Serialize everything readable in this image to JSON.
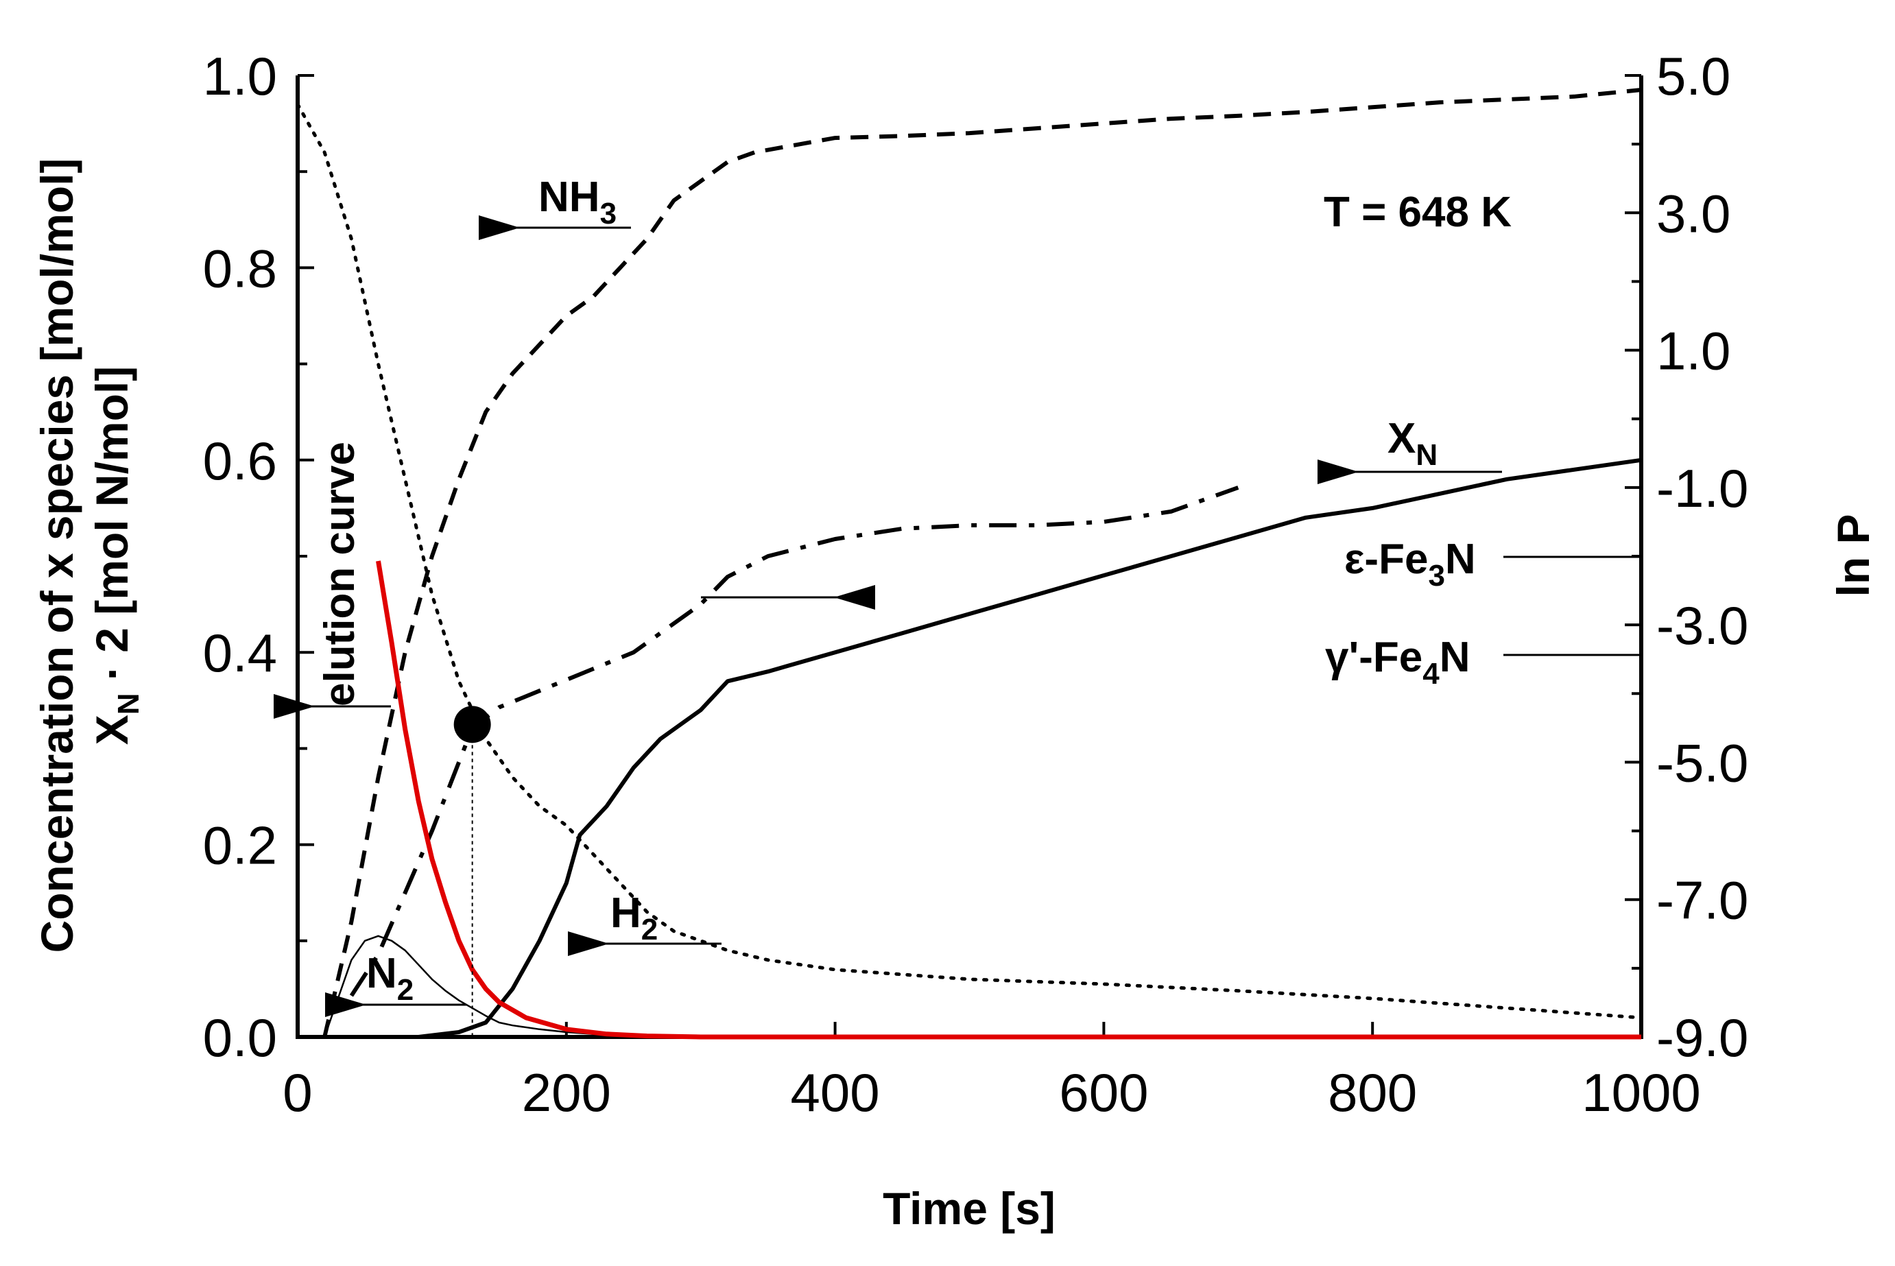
{
  "chart_data": {
    "type": "line",
    "title": "",
    "xlabel": "Time [s]",
    "ylabel_left_line1": "Concentration of x species [mol/mol]",
    "ylabel_left_line2_main": "X",
    "ylabel_left_line2_sub": "N",
    "ylabel_left_line2_rest": " · 2 [mol N/mol]",
    "ylabel_right": "ln P",
    "xlim": [
      0,
      1000
    ],
    "ylim_left": [
      0,
      1.0
    ],
    "ylim_right": [
      -9.0,
      5.0
    ],
    "x_ticks": [
      "0",
      "200",
      "400",
      "600",
      "800",
      "1000"
    ],
    "x_tick_values": [
      0,
      200,
      400,
      600,
      800,
      1000
    ],
    "y_left_ticks": [
      "0.0",
      "0.2",
      "0.4",
      "0.6",
      "0.8",
      "1.0"
    ],
    "y_left_tick_values": [
      0,
      0.2,
      0.4,
      0.6,
      0.8,
      1.0
    ],
    "y_right_ticks": [
      "-9.0",
      "-7.0",
      "-5.0",
      "-3.0",
      "-1.0",
      "1.0",
      "3.0",
      "5.0"
    ],
    "y_right_tick_values": [
      -9,
      -7,
      -5,
      -3,
      -1,
      1,
      3,
      5
    ],
    "temperature_label": "T = 648 K",
    "series": [
      {
        "name": "NH3",
        "axis": "left",
        "style": "dashed",
        "color": "#000000",
        "x": [
          20,
          40,
          60,
          80,
          100,
          120,
          140,
          160,
          180,
          200,
          220,
          240,
          260,
          280,
          300,
          320,
          340,
          360,
          380,
          400,
          450,
          500,
          550,
          600,
          650,
          700,
          750,
          800,
          850,
          900,
          950,
          1000
        ],
        "y": [
          0.0,
          0.12,
          0.27,
          0.4,
          0.5,
          0.58,
          0.65,
          0.69,
          0.72,
          0.75,
          0.77,
          0.8,
          0.83,
          0.87,
          0.89,
          0.91,
          0.92,
          0.925,
          0.93,
          0.935,
          0.937,
          0.94,
          0.945,
          0.95,
          0.955,
          0.958,
          0.962,
          0.967,
          0.972,
          0.975,
          0.978,
          0.985
        ]
      },
      {
        "name": "H2",
        "axis": "left",
        "style": "dotted",
        "color": "#000000",
        "x": [
          0,
          20,
          40,
          60,
          80,
          100,
          120,
          140,
          160,
          180,
          200,
          220,
          240,
          260,
          280,
          300,
          320,
          350,
          400,
          450,
          500,
          600,
          700,
          800,
          900,
          1000
        ],
        "y": [
          0.97,
          0.92,
          0.83,
          0.7,
          0.58,
          0.46,
          0.37,
          0.31,
          0.27,
          0.24,
          0.22,
          0.19,
          0.16,
          0.13,
          0.11,
          0.1,
          0.09,
          0.08,
          0.07,
          0.065,
          0.06,
          0.055,
          0.048,
          0.04,
          0.03,
          0.02
        ]
      },
      {
        "name": "N2",
        "axis": "left",
        "style": "thin-solid",
        "color": "#000000",
        "x": [
          20,
          30,
          40,
          50,
          60,
          70,
          80,
          90,
          100,
          110,
          120,
          130,
          140,
          150,
          160,
          180,
          200,
          220,
          250,
          300,
          400,
          1000
        ],
        "y": [
          0.0,
          0.04,
          0.08,
          0.1,
          0.105,
          0.1,
          0.09,
          0.075,
          0.06,
          0.048,
          0.038,
          0.03,
          0.022,
          0.015,
          0.012,
          0.008,
          0.005,
          0.003,
          0.001,
          0.0,
          0.0,
          0.0
        ]
      },
      {
        "name": "XN",
        "axis": "left",
        "style": "solid",
        "color": "#000000",
        "x": [
          0,
          90,
          120,
          140,
          160,
          180,
          200,
          210,
          230,
          250,
          270,
          300,
          320,
          350,
          400,
          450,
          500,
          550,
          600,
          650,
          700,
          750,
          800,
          850,
          900,
          950,
          1000
        ],
        "y": [
          0.0,
          0.0,
          0.005,
          0.015,
          0.05,
          0.1,
          0.16,
          0.21,
          0.24,
          0.28,
          0.31,
          0.34,
          0.37,
          0.38,
          0.4,
          0.42,
          0.44,
          0.46,
          0.48,
          0.5,
          0.52,
          0.54,
          0.55,
          0.565,
          0.58,
          0.59,
          0.6
        ]
      },
      {
        "name": "ln P",
        "axis": "right",
        "style": "dash-dot",
        "color": "#000000",
        "x": [
          40,
          60,
          80,
          100,
          120,
          130,
          150,
          200,
          250,
          300,
          320,
          350,
          400,
          450,
          500,
          550,
          600,
          650,
          700
        ],
        "y": [
          -8.4,
          -7.8,
          -6.9,
          -6.0,
          -5.0,
          -4.5,
          -4.2,
          -3.8,
          -3.4,
          -2.7,
          -2.3,
          -2.0,
          -1.75,
          -1.6,
          -1.55,
          -1.55,
          -1.5,
          -1.35,
          -1.0
        ]
      },
      {
        "name": "elution curve",
        "axis": "left",
        "style": "solid",
        "color": "#e00000",
        "x": [
          60,
          70,
          80,
          90,
          100,
          110,
          120,
          130,
          140,
          150,
          170,
          200,
          230,
          260,
          300,
          400,
          600,
          1000
        ],
        "y": [
          0.495,
          0.41,
          0.32,
          0.245,
          0.185,
          0.14,
          0.1,
          0.07,
          0.05,
          0.036,
          0.02,
          0.008,
          0.003,
          0.001,
          0.0,
          0.0,
          0.0,
          0.0
        ]
      }
    ],
    "marker": {
      "x": 130,
      "y": 0.325,
      "label": ""
    },
    "annotations": {
      "NH3_main": "NH",
      "NH3_sub": "3",
      "H2_main": "H",
      "H2_sub": "2",
      "N2_main": "N",
      "N2_sub": "2",
      "XN_main": "X",
      "XN_sub": "N",
      "elution": "elution curve",
      "eps_a": "ε-Fe",
      "eps_sub": "3",
      "eps_b": "N",
      "gamma_a": "γ'-Fe",
      "gamma_sub": "4",
      "gamma_b": "N"
    }
  }
}
